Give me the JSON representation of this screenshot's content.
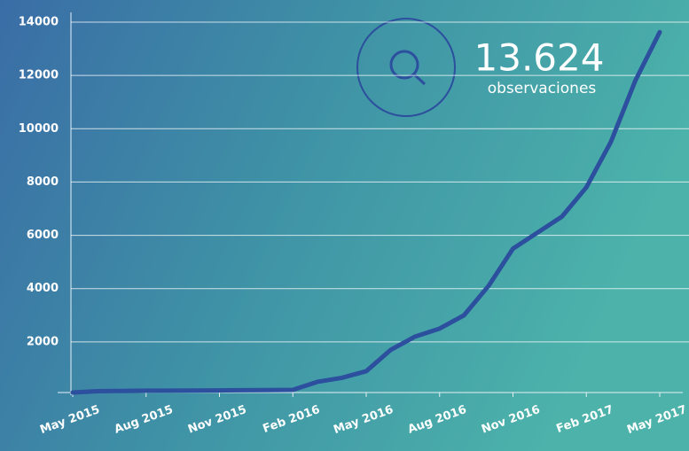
{
  "chart_data": {
    "type": "line",
    "annotation": {
      "value_label": "13.624",
      "text": "observaciones"
    },
    "x": [
      "2015-05",
      "2015-06",
      "2015-07",
      "2015-08",
      "2015-09",
      "2015-10",
      "2015-11",
      "2015-12",
      "2016-01",
      "2016-02",
      "2016-03",
      "2016-04",
      "2016-05",
      "2016-06",
      "2016-07",
      "2016-08",
      "2016-09",
      "2016-10",
      "2016-11",
      "2016-12",
      "2017-01",
      "2017-02",
      "2017-03",
      "2017-04",
      "2017-05"
    ],
    "series": [
      {
        "color": "#2c4f9e",
        "values": [
          100,
          150,
          160,
          170,
          170,
          175,
          180,
          185,
          190,
          200,
          500,
          650,
          900,
          1700,
          2200,
          2500,
          3000,
          4100,
          5500,
          6100,
          6700,
          7800,
          9500,
          11800,
          13624
        ]
      }
    ],
    "xlim": [
      "2015-05",
      "2017-05"
    ],
    "xticks": [
      {
        "value": "2015-05",
        "label": "May 2015"
      },
      {
        "value": "2015-08",
        "label": "Aug 2015"
      },
      {
        "value": "2015-11",
        "label": "Nov 2015"
      },
      {
        "value": "2016-02",
        "label": "Feb 2016"
      },
      {
        "value": "2016-05",
        "label": "May 2016"
      },
      {
        "value": "2016-08",
        "label": "Aug 2016"
      },
      {
        "value": "2016-11",
        "label": "Nov 2016"
      },
      {
        "value": "2017-02",
        "label": "Feb 2017"
      },
      {
        "value": "2017-05",
        "label": "May 2017"
      }
    ],
    "ylim": [
      0,
      14000
    ],
    "yticks": [
      2000,
      4000,
      6000,
      8000,
      10000,
      12000,
      14000
    ],
    "grid": true
  }
}
